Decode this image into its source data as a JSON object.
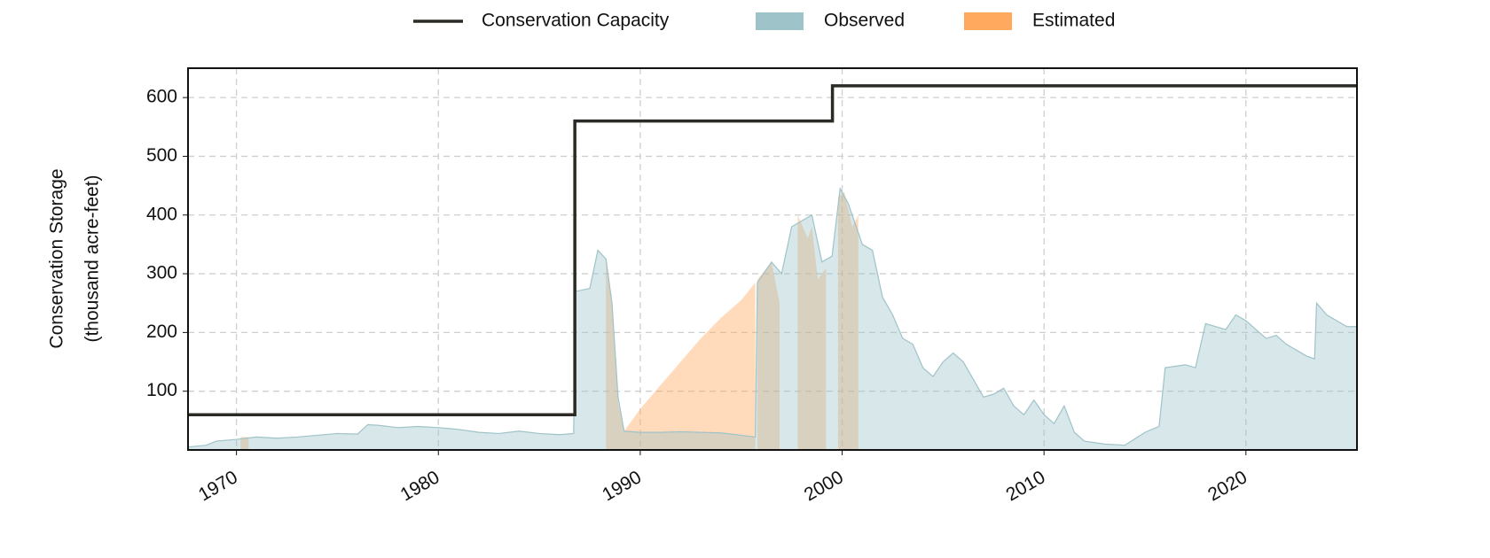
{
  "chart_data": {
    "type": "area",
    "ylabel": [
      "Conservation Storage",
      "(thousand acre-feet)"
    ],
    "xlim": [
      1967.6,
      2025.5
    ],
    "xticks": [
      1970,
      1980,
      1990,
      2000,
      2010,
      2020
    ],
    "ylim": [
      0,
      650
    ],
    "yticks": [
      100,
      200,
      300,
      400,
      500,
      600
    ],
    "grid": true,
    "legend": "top",
    "series": [
      {
        "name": "Conservation Capacity",
        "kind": "step",
        "color": "#2b2a25",
        "x": [
          1967.6,
          1986.76,
          1986.76,
          1999.52,
          1999.52,
          2025.5
        ],
        "values": [
          60,
          60,
          560,
          560,
          620,
          620
        ]
      },
      {
        "name": "Observed",
        "kind": "area",
        "color": "#9ec3c9",
        "x": [
          1967.6,
          1968.5,
          1969,
          1970,
          1971,
          1972,
          1973,
          1974,
          1975,
          1976,
          1976.5,
          1977,
          1978,
          1979,
          1980,
          1981,
          1982,
          1983,
          1984,
          1985,
          1986,
          1986.7,
          1986.8,
          1987.5,
          1987.9,
          1988.3,
          1988.6,
          1988.9,
          1989.2,
          1990,
          1991,
          1992,
          1993,
          1994,
          1995,
          1995.7,
          1995.8,
          1996.5,
          1997,
          1997.5,
          1998,
          1998.5,
          1999,
          1999.5,
          1999.9,
          2000.3,
          2000.5,
          2001,
          2001.5,
          2002,
          2002.5,
          2003,
          2003.5,
          2004,
          2004.5,
          2005,
          2005.5,
          2006,
          2006.5,
          2007,
          2007.5,
          2008,
          2008.5,
          2009,
          2009.5,
          2010,
          2010.5,
          2011,
          2011.5,
          2012,
          2013,
          2014,
          2015,
          2015.7,
          2016,
          2017,
          2017.5,
          2018,
          2019,
          2019.5,
          2020,
          2021,
          2021.5,
          2022,
          2023,
          2023.4,
          2023.5,
          2024,
          2024.5,
          2025,
          2025.5
        ],
        "values": [
          5,
          8,
          15,
          18,
          22,
          20,
          22,
          25,
          28,
          27,
          43,
          42,
          38,
          40,
          38,
          35,
          30,
          28,
          32,
          28,
          26,
          28,
          270,
          275,
          340,
          325,
          250,
          90,
          32,
          30,
          30,
          31,
          30,
          29,
          25,
          22,
          285,
          320,
          300,
          380,
          390,
          400,
          320,
          330,
          445,
          420,
          400,
          350,
          340,
          260,
          230,
          190,
          180,
          140,
          125,
          150,
          165,
          150,
          120,
          90,
          95,
          105,
          75,
          60,
          85,
          60,
          45,
          75,
          30,
          15,
          10,
          8,
          30,
          40,
          140,
          145,
          140,
          215,
          205,
          230,
          220,
          190,
          195,
          180,
          160,
          155,
          250,
          230,
          220,
          210,
          210
        ]
      },
      {
        "name": "Estimated",
        "kind": "area",
        "color": "#ffa95e",
        "x": [
          1970.2,
          1970.6,
          1970.7,
          1988.3,
          1988.6,
          1988.9,
          1989.2,
          1990,
          1991,
          1992,
          1993,
          1994,
          1995,
          1995.7,
          1995.75,
          1995.8,
          1996.5,
          1996.9,
          1997,
          1997.8,
          1998.3,
          1998.5,
          1998.8,
          1999.2,
          1999.3,
          1999.8,
          2000.1,
          2000.5,
          2000.8
        ],
        "values": [
          22,
          22,
          null,
          330,
          250,
          80,
          32,
          70,
          110,
          150,
          190,
          225,
          255,
          285,
          null,
          290,
          320,
          250,
          null,
          400,
          360,
          380,
          290,
          310,
          null,
          430,
          440,
          380,
          400
        ]
      }
    ]
  }
}
